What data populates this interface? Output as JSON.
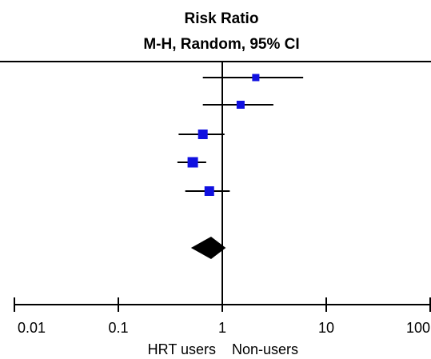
{
  "chart_data": {
    "type": "forest",
    "header": {
      "measure": "Risk Ratio",
      "method": "M-H, Random, 95% CI"
    },
    "x_scale": "log",
    "xlim": [
      0.01,
      100
    ],
    "xticks": [
      0.01,
      0.1,
      1,
      10,
      100
    ],
    "xtick_labels": [
      "0.01",
      "0.1",
      "1",
      "10",
      "100"
    ],
    "reference_line": 1,
    "favours": {
      "left": "HRT users",
      "right": "Non-users"
    },
    "studies": [
      {
        "estimate": 2.1,
        "ci_low": 0.65,
        "ci_high": 6.0
      },
      {
        "estimate": 1.5,
        "ci_low": 0.65,
        "ci_high": 3.1
      },
      {
        "estimate": 0.65,
        "ci_low": 0.38,
        "ci_high": 1.05
      },
      {
        "estimate": 0.52,
        "ci_low": 0.37,
        "ci_high": 0.7
      },
      {
        "estimate": 0.75,
        "ci_low": 0.44,
        "ci_high": 1.18
      }
    ],
    "pooled": {
      "estimate": 0.78,
      "ci_low": 0.5,
      "ci_high": 1.08
    },
    "colors": {
      "study_marker": "#1010e0",
      "pooled_marker": "#000000",
      "lines": "#000000"
    }
  }
}
